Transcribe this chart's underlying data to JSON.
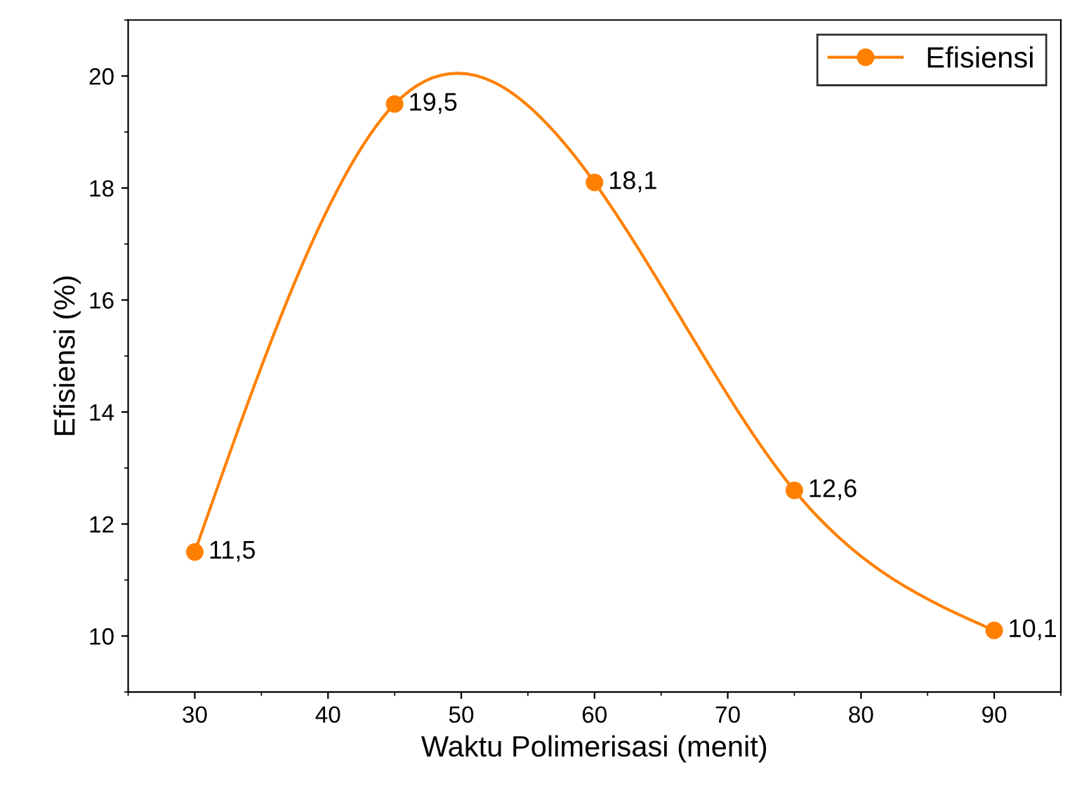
{
  "chart_data": {
    "type": "line",
    "xlabel": "Waktu Polimerisasi (menit)",
    "ylabel": "Efisiensi (%)",
    "x": [
      30,
      45,
      60,
      75,
      90
    ],
    "series": [
      {
        "name": "Efisiensi",
        "color": "#ff8000",
        "values": [
          11.5,
          19.5,
          18.1,
          12.6,
          10.1
        ],
        "value_labels": [
          "11,5",
          "19,5",
          "18,1",
          "12,6",
          "10,1"
        ]
      }
    ],
    "xlim": [
      25,
      95
    ],
    "ylim": [
      9,
      21
    ],
    "xticks": [
      30,
      40,
      50,
      60,
      70,
      80,
      90
    ],
    "yticks": [
      10,
      12,
      14,
      16,
      18,
      20
    ],
    "marker": "circle",
    "line_style": "solid",
    "legend": "top right",
    "grid": false
  }
}
